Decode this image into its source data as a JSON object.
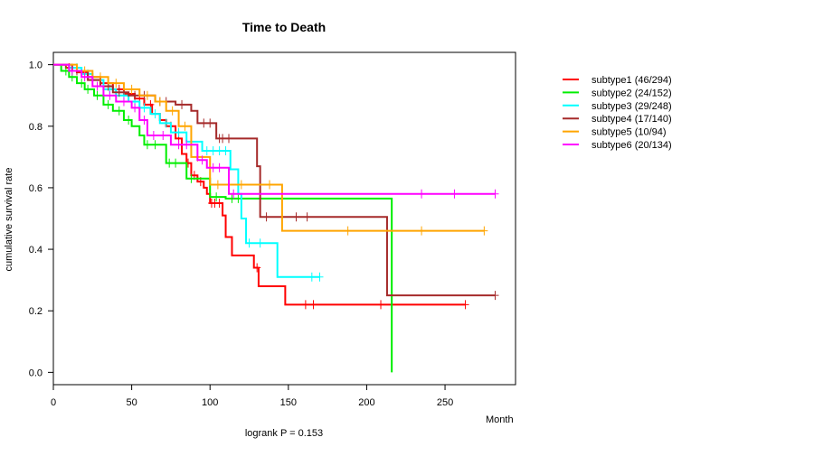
{
  "chart_data": {
    "type": "line",
    "title": "Time to Death",
    "xlabel": "Month",
    "ylabel": "cumulative survival rate",
    "xlim": [
      0,
      295
    ],
    "ylim": [
      -0.04,
      1.04
    ],
    "xticks": [
      0,
      50,
      100,
      150,
      200,
      250
    ],
    "yticks": [
      0.0,
      0.2,
      0.4,
      0.6,
      0.8,
      1.0
    ],
    "xtick_labels": [
      "0",
      "50",
      "100",
      "150",
      "200",
      "250"
    ],
    "ytick_labels": [
      "0.0",
      "0.2",
      "0.4",
      "0.6",
      "0.8",
      "1.0"
    ],
    "annotation": "logrank P = 0.153",
    "legend_position": "top-right outside plot",
    "series": [
      {
        "name": "subtype1 (46/294)",
        "color": "#ff0000",
        "steps": [
          [
            0,
            1.0
          ],
          [
            8,
            0.99
          ],
          [
            15,
            0.975
          ],
          [
            22,
            0.96
          ],
          [
            30,
            0.94
          ],
          [
            38,
            0.92
          ],
          [
            45,
            0.905
          ],
          [
            52,
            0.89
          ],
          [
            58,
            0.87
          ],
          [
            63,
            0.84
          ],
          [
            68,
            0.82
          ],
          [
            72,
            0.8
          ],
          [
            78,
            0.76
          ],
          [
            82,
            0.71
          ],
          [
            85,
            0.68
          ],
          [
            88,
            0.64
          ],
          [
            92,
            0.62
          ],
          [
            96,
            0.6
          ],
          [
            98,
            0.58
          ],
          [
            100,
            0.55
          ],
          [
            105,
            0.55
          ],
          [
            108,
            0.51
          ],
          [
            110,
            0.44
          ],
          [
            114,
            0.38
          ],
          [
            128,
            0.34
          ],
          [
            131,
            0.28
          ],
          [
            148,
            0.22
          ],
          [
            263,
            0.22
          ]
        ],
        "censors": [
          [
            10,
            0.99
          ],
          [
            18,
            0.975
          ],
          [
            25,
            0.96
          ],
          [
            35,
            0.94
          ],
          [
            42,
            0.92
          ],
          [
            55,
            0.89
          ],
          [
            62,
            0.87
          ],
          [
            75,
            0.8
          ],
          [
            80,
            0.76
          ],
          [
            86,
            0.68
          ],
          [
            90,
            0.64
          ],
          [
            94,
            0.62
          ],
          [
            101,
            0.55
          ],
          [
            103,
            0.55
          ],
          [
            106,
            0.55
          ],
          [
            130,
            0.34
          ],
          [
            161,
            0.22
          ],
          [
            166,
            0.22
          ],
          [
            209,
            0.22
          ],
          [
            263,
            0.22
          ]
        ]
      },
      {
        "name": "subtype2 (24/152)",
        "color": "#00ee00",
        "steps": [
          [
            0,
            1.0
          ],
          [
            5,
            0.98
          ],
          [
            10,
            0.96
          ],
          [
            15,
            0.94
          ],
          [
            20,
            0.92
          ],
          [
            26,
            0.9
          ],
          [
            32,
            0.87
          ],
          [
            38,
            0.85
          ],
          [
            45,
            0.82
          ],
          [
            50,
            0.8
          ],
          [
            55,
            0.77
          ],
          [
            58,
            0.74
          ],
          [
            72,
            0.68
          ],
          [
            85,
            0.63
          ],
          [
            100,
            0.57
          ],
          [
            108,
            0.57
          ],
          [
            110,
            0.565
          ],
          [
            216,
            0.565
          ],
          [
            216,
            0.0
          ]
        ],
        "censors": [
          [
            8,
            0.98
          ],
          [
            12,
            0.96
          ],
          [
            18,
            0.94
          ],
          [
            22,
            0.92
          ],
          [
            28,
            0.9
          ],
          [
            35,
            0.87
          ],
          [
            42,
            0.85
          ],
          [
            48,
            0.82
          ],
          [
            60,
            0.74
          ],
          [
            65,
            0.74
          ],
          [
            74,
            0.68
          ],
          [
            78,
            0.68
          ],
          [
            88,
            0.63
          ],
          [
            104,
            0.57
          ],
          [
            114,
            0.565
          ],
          [
            118,
            0.565
          ]
        ]
      },
      {
        "name": "subtype3 (29/248)",
        "color": "#00ffff",
        "steps": [
          [
            0,
            1.0
          ],
          [
            10,
            0.99
          ],
          [
            18,
            0.97
          ],
          [
            25,
            0.95
          ],
          [
            32,
            0.92
          ],
          [
            40,
            0.9
          ],
          [
            48,
            0.88
          ],
          [
            55,
            0.86
          ],
          [
            62,
            0.84
          ],
          [
            68,
            0.81
          ],
          [
            75,
            0.78
          ],
          [
            85,
            0.75
          ],
          [
            95,
            0.72
          ],
          [
            112,
            0.72
          ],
          [
            113,
            0.66
          ],
          [
            118,
            0.58
          ],
          [
            120,
            0.5
          ],
          [
            123,
            0.42
          ],
          [
            135,
            0.42
          ],
          [
            143,
            0.31
          ],
          [
            170,
            0.31
          ]
        ],
        "censors": [
          [
            15,
            0.99
          ],
          [
            22,
            0.97
          ],
          [
            30,
            0.95
          ],
          [
            36,
            0.92
          ],
          [
            45,
            0.9
          ],
          [
            52,
            0.88
          ],
          [
            58,
            0.86
          ],
          [
            65,
            0.84
          ],
          [
            72,
            0.81
          ],
          [
            80,
            0.78
          ],
          [
            88,
            0.75
          ],
          [
            98,
            0.72
          ],
          [
            102,
            0.72
          ],
          [
            106,
            0.72
          ],
          [
            110,
            0.72
          ],
          [
            125,
            0.42
          ],
          [
            132,
            0.42
          ],
          [
            165,
            0.31
          ],
          [
            170,
            0.31
          ]
        ]
      },
      {
        "name": "subtype4 (17/140)",
        "color": "#a52a2a",
        "steps": [
          [
            0,
            1.0
          ],
          [
            12,
            0.98
          ],
          [
            22,
            0.95
          ],
          [
            30,
            0.93
          ],
          [
            38,
            0.91
          ],
          [
            48,
            0.9
          ],
          [
            65,
            0.88
          ],
          [
            78,
            0.87
          ],
          [
            88,
            0.85
          ],
          [
            92,
            0.81
          ],
          [
            102,
            0.81
          ],
          [
            104,
            0.76
          ],
          [
            128,
            0.76
          ],
          [
            130,
            0.67
          ],
          [
            132,
            0.505
          ],
          [
            213,
            0.505
          ],
          [
            213,
            0.25
          ],
          [
            282,
            0.25
          ]
        ],
        "censors": [
          [
            15,
            0.98
          ],
          [
            25,
            0.95
          ],
          [
            35,
            0.93
          ],
          [
            42,
            0.91
          ],
          [
            52,
            0.9
          ],
          [
            58,
            0.9
          ],
          [
            68,
            0.88
          ],
          [
            72,
            0.88
          ],
          [
            82,
            0.87
          ],
          [
            96,
            0.81
          ],
          [
            100,
            0.81
          ],
          [
            106,
            0.76
          ],
          [
            108,
            0.76
          ],
          [
            112,
            0.76
          ],
          [
            136,
            0.505
          ],
          [
            155,
            0.505
          ],
          [
            162,
            0.505
          ],
          [
            282,
            0.25
          ]
        ]
      },
      {
        "name": "subtype5 (10/94)",
        "color": "#ffa500",
        "steps": [
          [
            0,
            1.0
          ],
          [
            15,
            0.98
          ],
          [
            25,
            0.96
          ],
          [
            35,
            0.94
          ],
          [
            45,
            0.92
          ],
          [
            55,
            0.9
          ],
          [
            65,
            0.88
          ],
          [
            72,
            0.85
          ],
          [
            80,
            0.8
          ],
          [
            88,
            0.7
          ],
          [
            100,
            0.61
          ],
          [
            145,
            0.61
          ],
          [
            146,
            0.46
          ],
          [
            275,
            0.46
          ]
        ],
        "censors": [
          [
            20,
            0.98
          ],
          [
            30,
            0.96
          ],
          [
            40,
            0.94
          ],
          [
            50,
            0.92
          ],
          [
            60,
            0.9
          ],
          [
            68,
            0.88
          ],
          [
            76,
            0.85
          ],
          [
            84,
            0.8
          ],
          [
            92,
            0.7
          ],
          [
            105,
            0.61
          ],
          [
            120,
            0.61
          ],
          [
            138,
            0.61
          ],
          [
            188,
            0.46
          ],
          [
            235,
            0.46
          ],
          [
            275,
            0.46
          ]
        ]
      },
      {
        "name": "subtype6 (20/134)",
        "color": "#ff00ff",
        "steps": [
          [
            0,
            1.0
          ],
          [
            10,
            0.98
          ],
          [
            18,
            0.96
          ],
          [
            25,
            0.93
          ],
          [
            32,
            0.9
          ],
          [
            40,
            0.88
          ],
          [
            50,
            0.86
          ],
          [
            55,
            0.82
          ],
          [
            60,
            0.77
          ],
          [
            75,
            0.74
          ],
          [
            88,
            0.74
          ],
          [
            92,
            0.69
          ],
          [
            98,
            0.665
          ],
          [
            110,
            0.665
          ],
          [
            112,
            0.58
          ],
          [
            282,
            0.58
          ]
        ],
        "censors": [
          [
            12,
            0.98
          ],
          [
            20,
            0.96
          ],
          [
            28,
            0.93
          ],
          [
            36,
            0.9
          ],
          [
            45,
            0.88
          ],
          [
            52,
            0.86
          ],
          [
            58,
            0.82
          ],
          [
            64,
            0.77
          ],
          [
            70,
            0.77
          ],
          [
            80,
            0.74
          ],
          [
            85,
            0.74
          ],
          [
            95,
            0.69
          ],
          [
            102,
            0.665
          ],
          [
            106,
            0.665
          ],
          [
            115,
            0.58
          ],
          [
            235,
            0.58
          ],
          [
            256,
            0.58
          ],
          [
            282,
            0.58
          ]
        ]
      }
    ]
  }
}
